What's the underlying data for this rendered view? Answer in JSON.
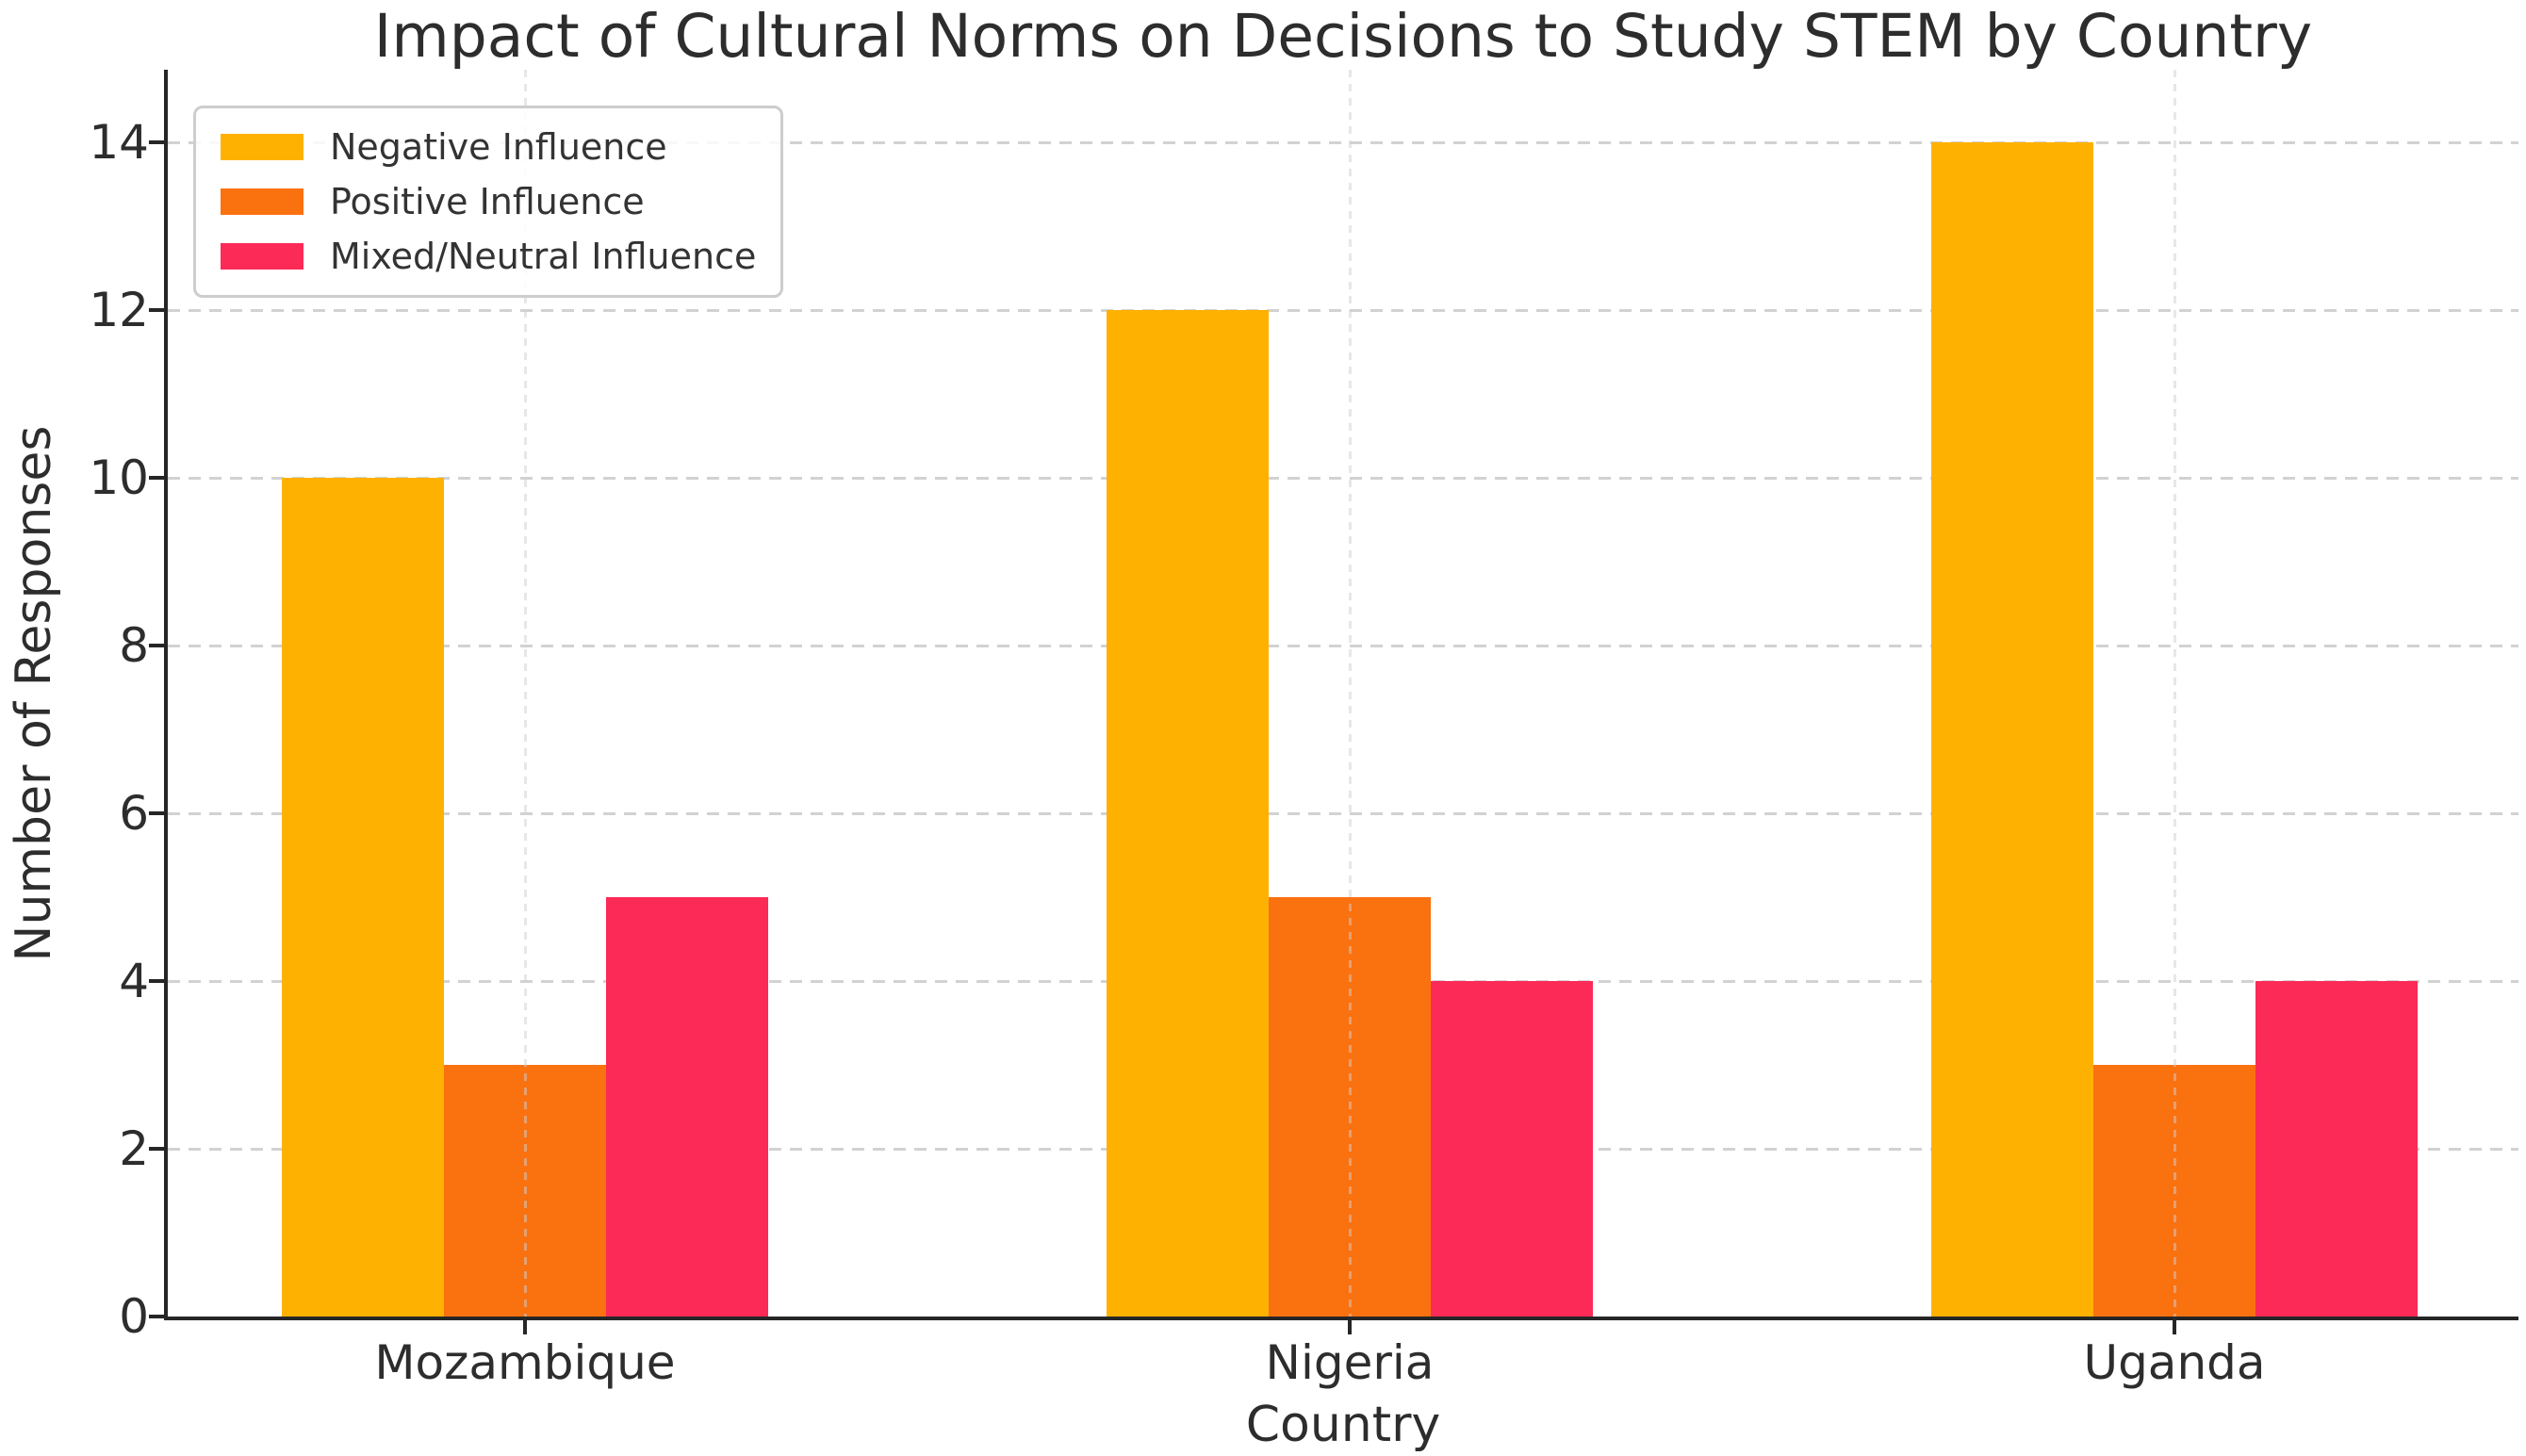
{
  "chart_data": {
    "type": "bar",
    "title": "Impact of Cultural Norms on Decisions to Study STEM by Country",
    "xlabel": "Country",
    "ylabel": "Number of Responses",
    "categories": [
      "Mozambique",
      "Nigeria",
      "Uganda"
    ],
    "series": [
      {
        "name": "Negative Influence",
        "color": "#FFB101",
        "values": [
          10,
          12,
          14
        ]
      },
      {
        "name": "Positive Influence",
        "color": "#FA7110",
        "values": [
          3,
          5,
          3
        ]
      },
      {
        "name": "Mixed/Neutral Influence",
        "color": "#FC2A57",
        "values": [
          5,
          4,
          4
        ]
      }
    ],
    "yticks": [
      0,
      2,
      4,
      6,
      8,
      10,
      12,
      14
    ],
    "ylim": [
      0,
      14.87
    ],
    "grid": "dashed",
    "legend_position": "upper-left"
  },
  "colors": {
    "grid": "#d2d2d2",
    "spine": "#262626",
    "text": "#2d2d2d",
    "background": "#ffffff",
    "legend_border": "#cdcdcd"
  }
}
